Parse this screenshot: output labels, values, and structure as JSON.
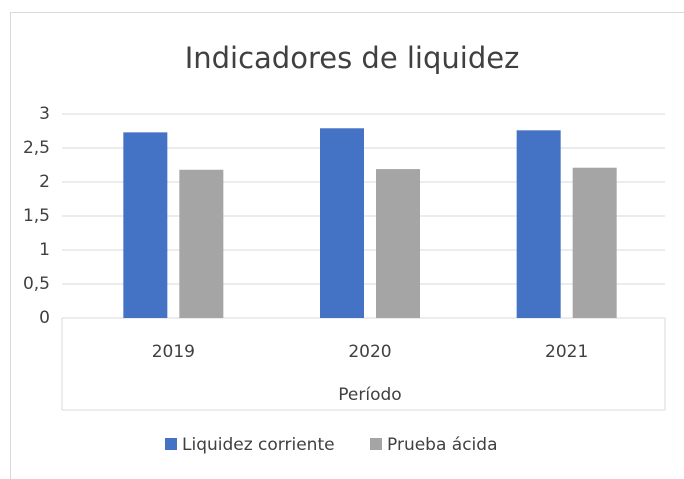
{
  "chart_data": {
    "type": "bar",
    "title": "Indicadores de liquidez",
    "x_label": "Período",
    "categories": [
      "2019",
      "2020",
      "2021"
    ],
    "series": [
      {
        "name": "Liquidez corriente",
        "color": "#4472c4",
        "values": [
          2.73,
          2.79,
          2.76
        ]
      },
      {
        "name": "Prueba ácida",
        "color": "#a5a5a5",
        "values": [
          2.18,
          2.19,
          2.21
        ]
      }
    ],
    "ylim": [
      0,
      3
    ],
    "yticks": [
      0,
      {
        "value": 0.5,
        "label": "0,5"
      },
      1,
      {
        "value": 1.5,
        "label": "1,5"
      },
      2,
      {
        "value": 2.5,
        "label": "2,5"
      },
      3
    ],
    "grid": true,
    "legend": "bottom"
  }
}
